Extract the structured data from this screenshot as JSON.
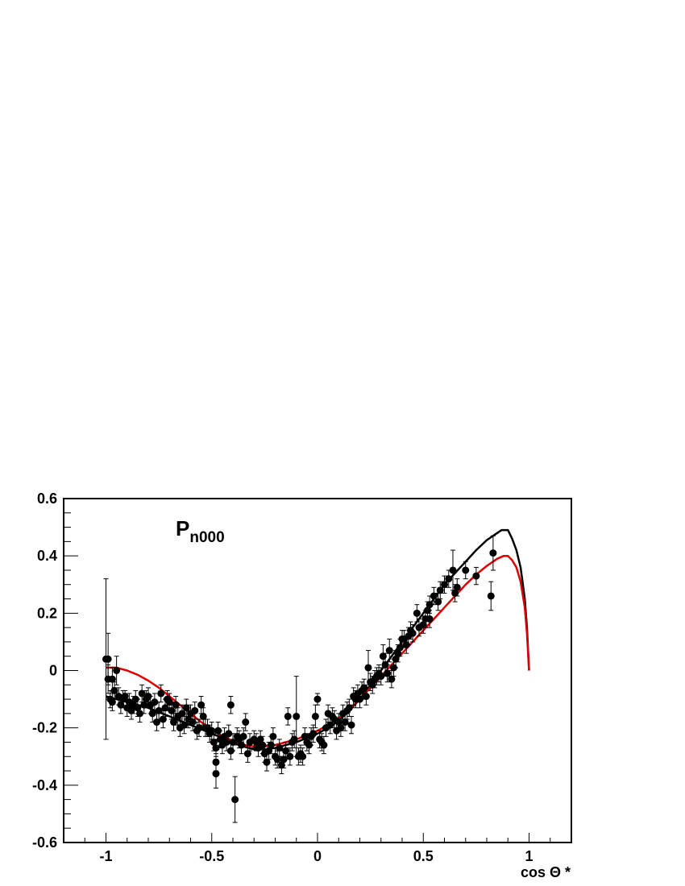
{
  "chart_data": {
    "type": "scatter",
    "title": "",
    "annotation": {
      "main": "P",
      "subscript": "n000"
    },
    "xlabel": "cos Θ *",
    "ylabel": "",
    "xlim": [
      -1.2,
      1.2
    ],
    "ylim": [
      -0.6,
      0.6
    ],
    "xticks": [
      {
        "value": -1,
        "label": "-1"
      },
      {
        "value": -0.5,
        "label": "-0.5"
      },
      {
        "value": 0,
        "label": "0"
      },
      {
        "value": 0.5,
        "label": "0.5"
      },
      {
        "value": 1,
        "label": "1"
      }
    ],
    "yticks": [
      {
        "value": -0.6,
        "label": "-0.6"
      },
      {
        "value": -0.4,
        "label": "-0.4"
      },
      {
        "value": -0.2,
        "label": "-0.2"
      },
      {
        "value": 0,
        "label": "0"
      },
      {
        "value": 0.2,
        "label": "0.2"
      },
      {
        "value": 0.4,
        "label": "0.4"
      },
      {
        "value": 0.6,
        "label": "0.6"
      }
    ],
    "grid": false,
    "colors": {
      "data": "#000000",
      "curve1": "#000000",
      "curve2": "#dd0000"
    },
    "points": [
      [
        -1.0,
        0.04,
        0.28
      ],
      [
        -0.99,
        0.04,
        0.09
      ],
      [
        -0.99,
        -0.03,
        0.05
      ],
      [
        -0.98,
        -0.1,
        0.03
      ],
      [
        -0.97,
        -0.03,
        0.04
      ],
      [
        -0.97,
        -0.11,
        0.03
      ],
      [
        -0.96,
        -0.07,
        0.03
      ],
      [
        -0.95,
        0.0,
        0.05
      ],
      [
        -0.94,
        -0.09,
        0.03
      ],
      [
        -0.93,
        -0.12,
        0.03
      ],
      [
        -0.92,
        -0.1,
        0.03
      ],
      [
        -0.91,
        -0.09,
        0.02
      ],
      [
        -0.9,
        -0.13,
        0.03
      ],
      [
        -0.89,
        -0.11,
        0.03
      ],
      [
        -0.88,
        -0.14,
        0.03
      ],
      [
        -0.87,
        -0.12,
        0.03
      ],
      [
        -0.86,
        -0.1,
        0.03
      ],
      [
        -0.85,
        -0.13,
        0.03
      ],
      [
        -0.84,
        -0.15,
        0.03
      ],
      [
        -0.83,
        -0.08,
        0.03
      ],
      [
        -0.82,
        -0.12,
        0.03
      ],
      [
        -0.81,
        -0.1,
        0.03
      ],
      [
        -0.8,
        -0.09,
        0.03
      ],
      [
        -0.79,
        -0.12,
        0.03
      ],
      [
        -0.78,
        -0.15,
        0.03
      ],
      [
        -0.77,
        -0.11,
        0.03
      ],
      [
        -0.76,
        -0.18,
        0.03
      ],
      [
        -0.75,
        -0.14,
        0.03
      ],
      [
        -0.74,
        -0.08,
        0.03
      ],
      [
        -0.73,
        -0.17,
        0.03
      ],
      [
        -0.72,
        -0.13,
        0.03
      ],
      [
        -0.71,
        -0.1,
        0.03
      ],
      [
        -0.7,
        -0.11,
        0.03
      ],
      [
        -0.69,
        -0.14,
        0.03
      ],
      [
        -0.68,
        -0.18,
        0.03
      ],
      [
        -0.67,
        -0.12,
        0.03
      ],
      [
        -0.66,
        -0.16,
        0.03
      ],
      [
        -0.65,
        -0.2,
        0.03
      ],
      [
        -0.64,
        -0.15,
        0.03
      ],
      [
        -0.63,
        -0.19,
        0.03
      ],
      [
        -0.62,
        -0.13,
        0.03
      ],
      [
        -0.61,
        -0.17,
        0.03
      ],
      [
        -0.6,
        -0.15,
        0.03
      ],
      [
        -0.59,
        -0.18,
        0.03
      ],
      [
        -0.58,
        -0.14,
        0.03
      ],
      [
        -0.57,
        -0.21,
        0.03
      ],
      [
        -0.56,
        -0.2,
        0.03
      ],
      [
        -0.55,
        -0.12,
        0.03
      ],
      [
        -0.54,
        -0.16,
        0.03
      ],
      [
        -0.53,
        -0.2,
        0.03
      ],
      [
        -0.52,
        -0.2,
        0.03
      ],
      [
        -0.51,
        -0.22,
        0.03
      ],
      [
        -0.5,
        -0.21,
        0.03
      ],
      [
        -0.49,
        -0.25,
        0.03
      ],
      [
        -0.48,
        -0.27,
        0.03
      ],
      [
        -0.48,
        -0.32,
        0.03
      ],
      [
        -0.48,
        -0.36,
        0.05
      ],
      [
        -0.47,
        -0.21,
        0.03
      ],
      [
        -0.46,
        -0.24,
        0.03
      ],
      [
        -0.45,
        -0.26,
        0.03
      ],
      [
        -0.44,
        -0.23,
        0.03
      ],
      [
        -0.43,
        -0.25,
        0.03
      ],
      [
        -0.42,
        -0.22,
        0.03
      ],
      [
        -0.41,
        -0.12,
        0.03
      ],
      [
        -0.41,
        -0.28,
        0.03
      ],
      [
        -0.4,
        -0.25,
        0.03
      ],
      [
        -0.39,
        -0.45,
        0.08
      ],
      [
        -0.38,
        -0.23,
        0.03
      ],
      [
        -0.37,
        -0.24,
        0.03
      ],
      [
        -0.36,
        -0.26,
        0.03
      ],
      [
        -0.35,
        -0.23,
        0.03
      ],
      [
        -0.34,
        -0.18,
        0.03
      ],
      [
        -0.33,
        -0.29,
        0.03
      ],
      [
        -0.32,
        -0.25,
        0.03
      ],
      [
        -0.3,
        -0.24,
        0.03
      ],
      [
        -0.29,
        -0.25,
        0.03
      ],
      [
        -0.28,
        -0.27,
        0.03
      ],
      [
        -0.27,
        -0.24,
        0.03
      ],
      [
        -0.26,
        -0.26,
        0.03
      ],
      [
        -0.25,
        -0.29,
        0.03
      ],
      [
        -0.24,
        -0.32,
        0.03
      ],
      [
        -0.23,
        -0.28,
        0.03
      ],
      [
        -0.22,
        -0.26,
        0.03
      ],
      [
        -0.21,
        -0.23,
        0.03
      ],
      [
        -0.2,
        -0.3,
        0.03
      ],
      [
        -0.19,
        -0.31,
        0.03
      ],
      [
        -0.18,
        -0.27,
        0.03
      ],
      [
        -0.17,
        -0.33,
        0.03
      ],
      [
        -0.16,
        -0.31,
        0.03
      ],
      [
        -0.15,
        -0.28,
        0.03
      ],
      [
        -0.14,
        -0.16,
        0.03
      ],
      [
        -0.13,
        -0.3,
        0.03
      ],
      [
        -0.12,
        -0.25,
        0.03
      ],
      [
        -0.11,
        -0.24,
        0.03
      ],
      [
        -0.1,
        -0.16,
        0.14
      ],
      [
        -0.09,
        -0.3,
        0.03
      ],
      [
        -0.08,
        -0.29,
        0.03
      ],
      [
        -0.07,
        -0.3,
        0.03
      ],
      [
        -0.06,
        -0.23,
        0.03
      ],
      [
        -0.05,
        -0.25,
        0.03
      ],
      [
        -0.04,
        -0.26,
        0.03
      ],
      [
        -0.03,
        -0.23,
        0.03
      ],
      [
        -0.02,
        -0.22,
        0.03
      ],
      [
        -0.01,
        -0.16,
        0.04
      ],
      [
        0.0,
        -0.1,
        0.02
      ],
      [
        0.01,
        -0.24,
        0.03
      ],
      [
        0.02,
        -0.25,
        0.03
      ],
      [
        0.03,
        -0.26,
        0.03
      ],
      [
        0.04,
        -0.2,
        0.03
      ],
      [
        0.05,
        -0.15,
        0.03
      ],
      [
        0.06,
        -0.19,
        0.03
      ],
      [
        0.07,
        -0.16,
        0.03
      ],
      [
        0.08,
        -0.17,
        0.03
      ],
      [
        0.09,
        -0.21,
        0.03
      ],
      [
        0.1,
        -0.18,
        0.03
      ],
      [
        0.11,
        -0.2,
        0.03
      ],
      [
        0.12,
        -0.15,
        0.03
      ],
      [
        0.13,
        -0.18,
        0.03
      ],
      [
        0.14,
        -0.14,
        0.03
      ],
      [
        0.15,
        -0.13,
        0.03
      ],
      [
        0.16,
        -0.19,
        0.03
      ],
      [
        0.17,
        -0.09,
        0.03
      ],
      [
        0.18,
        -0.1,
        0.03
      ],
      [
        0.19,
        -0.08,
        0.03
      ],
      [
        0.2,
        -0.1,
        0.03
      ],
      [
        0.21,
        -0.07,
        0.03
      ],
      [
        0.22,
        -0.06,
        0.03
      ],
      [
        0.23,
        -0.09,
        0.03
      ],
      [
        0.24,
        0.01,
        0.06
      ],
      [
        0.25,
        -0.04,
        0.03
      ],
      [
        0.26,
        -0.05,
        0.03
      ],
      [
        0.27,
        -0.03,
        0.03
      ],
      [
        0.28,
        -0.02,
        0.03
      ],
      [
        0.29,
        -0.01,
        0.03
      ],
      [
        0.3,
        -0.02,
        0.03
      ],
      [
        0.31,
        0.05,
        0.04
      ],
      [
        0.32,
        0.02,
        0.04
      ],
      [
        0.33,
        -0.01,
        0.03
      ],
      [
        0.34,
        0.07,
        0.04
      ],
      [
        0.35,
        -0.03,
        0.03
      ],
      [
        0.36,
        0.01,
        0.03
      ],
      [
        0.37,
        0.04,
        0.03
      ],
      [
        0.38,
        0.06,
        0.03
      ],
      [
        0.39,
        0.08,
        0.03
      ],
      [
        0.4,
        0.11,
        0.03
      ],
      [
        0.41,
        0.11,
        0.03
      ],
      [
        0.42,
        0.09,
        0.03
      ],
      [
        0.43,
        0.12,
        0.03
      ],
      [
        0.44,
        0.14,
        0.03
      ],
      [
        0.45,
        0.13,
        0.03
      ],
      [
        0.47,
        0.2,
        0.03
      ],
      [
        0.48,
        0.15,
        0.03
      ],
      [
        0.5,
        0.16,
        0.03
      ],
      [
        0.51,
        0.18,
        0.03
      ],
      [
        0.52,
        0.21,
        0.03
      ],
      [
        0.53,
        0.23,
        0.03
      ],
      [
        0.53,
        0.18,
        0.03
      ],
      [
        0.55,
        0.26,
        0.03
      ],
      [
        0.57,
        0.24,
        0.03
      ],
      [
        0.58,
        0.28,
        0.03
      ],
      [
        0.6,
        0.3,
        0.03
      ],
      [
        0.62,
        0.32,
        0.03
      ],
      [
        0.64,
        0.35,
        0.07
      ],
      [
        0.65,
        0.27,
        0.03
      ],
      [
        0.66,
        0.29,
        0.03
      ],
      [
        0.7,
        0.35,
        0.03
      ],
      [
        0.75,
        0.33,
        0.03
      ],
      [
        0.82,
        0.26,
        0.05
      ],
      [
        0.83,
        0.41,
        0.06
      ]
    ],
    "curves": [
      {
        "color": "#000000",
        "x": [
          -1.0,
          -0.95,
          -0.9,
          -0.85,
          -0.8,
          -0.75,
          -0.7,
          -0.65,
          -0.6,
          -0.55,
          -0.5,
          -0.45,
          -0.4,
          -0.35,
          -0.3,
          -0.25,
          -0.2,
          -0.15,
          -0.1,
          -0.05,
          0.0,
          0.05,
          0.1,
          0.15,
          0.2,
          0.25,
          0.3,
          0.35,
          0.4,
          0.45,
          0.5,
          0.55,
          0.6,
          0.65,
          0.7,
          0.75,
          0.8,
          0.85,
          0.87,
          0.9,
          0.92,
          0.94,
          0.96,
          0.98,
          0.99,
          1.0
        ],
        "y": [
          -0.09,
          -0.1,
          -0.11,
          -0.12,
          -0.13,
          -0.145,
          -0.16,
          -0.175,
          -0.19,
          -0.205,
          -0.22,
          -0.235,
          -0.25,
          -0.265,
          -0.275,
          -0.275,
          -0.27,
          -0.26,
          -0.25,
          -0.235,
          -0.22,
          -0.2,
          -0.175,
          -0.14,
          -0.1,
          -0.05,
          0.0,
          0.05,
          0.1,
          0.15,
          0.2,
          0.25,
          0.3,
          0.34,
          0.38,
          0.42,
          0.455,
          0.48,
          0.49,
          0.49,
          0.46,
          0.42,
          0.36,
          0.25,
          0.15,
          0.0
        ]
      },
      {
        "color": "#dd0000",
        "x": [
          -1.0,
          -0.95,
          -0.9,
          -0.85,
          -0.8,
          -0.75,
          -0.7,
          -0.65,
          -0.6,
          -0.55,
          -0.5,
          -0.45,
          -0.4,
          -0.35,
          -0.3,
          -0.25,
          -0.2,
          -0.15,
          -0.1,
          -0.05,
          0.0,
          0.05,
          0.1,
          0.15,
          0.2,
          0.25,
          0.3,
          0.35,
          0.4,
          0.45,
          0.5,
          0.55,
          0.6,
          0.65,
          0.7,
          0.75,
          0.8,
          0.85,
          0.88,
          0.9,
          0.92,
          0.94,
          0.96,
          0.98,
          0.99,
          1.0
        ],
        "y": [
          0.01,
          0.01,
          0.0,
          -0.015,
          -0.035,
          -0.06,
          -0.09,
          -0.12,
          -0.15,
          -0.18,
          -0.205,
          -0.23,
          -0.245,
          -0.26,
          -0.265,
          -0.265,
          -0.26,
          -0.25,
          -0.24,
          -0.225,
          -0.21,
          -0.19,
          -0.165,
          -0.135,
          -0.1,
          -0.06,
          -0.02,
          0.02,
          0.06,
          0.1,
          0.14,
          0.18,
          0.22,
          0.26,
          0.3,
          0.335,
          0.365,
          0.39,
          0.4,
          0.4,
          0.385,
          0.36,
          0.31,
          0.22,
          0.13,
          0.0
        ]
      }
    ]
  }
}
